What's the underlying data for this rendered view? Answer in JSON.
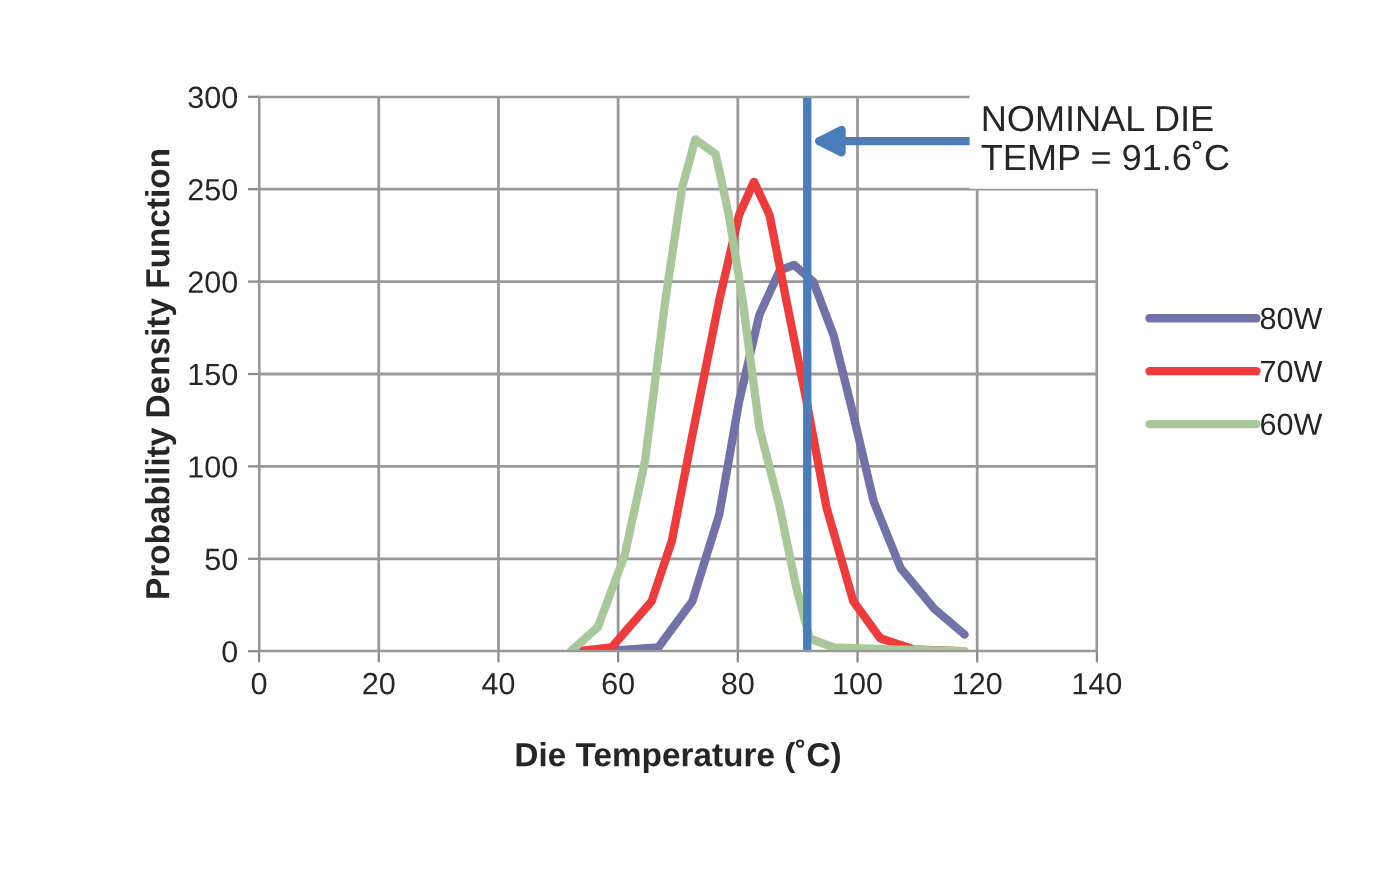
{
  "chart_data": {
    "type": "line",
    "xlabel": "Die Temperature (˚C)",
    "ylabel": "Probability Density Function",
    "xlim": [
      0,
      140
    ],
    "xticks": [
      0,
      20,
      40,
      60,
      80,
      100,
      120,
      140
    ],
    "ylim": [
      0,
      300
    ],
    "yticks": [
      0,
      50,
      100,
      150,
      200,
      250,
      300
    ],
    "grid": true,
    "legend": "right",
    "marker": "none",
    "line_style": "solid",
    "series": [
      {
        "name": "80W",
        "color": "#7072a8",
        "x": [
          57.8,
          66.7,
          72.4,
          76.9,
          80.2,
          83.6,
          87,
          89.4,
          92.6,
          96,
          99.3,
          102.7,
          107.2,
          112.8,
          117.9
        ],
        "values": [
          0,
          2,
          27,
          74,
          135,
          182,
          206,
          209,
          200,
          171,
          128,
          81,
          45,
          23,
          9
        ]
      },
      {
        "name": "70W",
        "color": "#ee3b3b",
        "x": [
          53.3,
          58.9,
          65.6,
          69,
          72.4,
          76.9,
          80.2,
          82.7,
          85.3,
          88.1,
          91.5,
          94.8,
          99.3,
          103.8,
          109.4,
          117.3
        ],
        "values": [
          0,
          2,
          27,
          60,
          117,
          190,
          236,
          254,
          236,
          190,
          135,
          78,
          27,
          7,
          1,
          0
        ]
      },
      {
        "name": "60W",
        "color": "#a8c89a",
        "x": [
          52.1,
          56.6,
          61.1,
          64.5,
          67.9,
          70.7,
          72.9,
          76.3,
          78.5,
          80.8,
          83.6,
          87,
          89.8,
          92,
          96,
          106,
          117.9
        ],
        "values": [
          0,
          13,
          52,
          103,
          190,
          251,
          277,
          269,
          236,
          190,
          121,
          78,
          34,
          7,
          2,
          1,
          0
        ]
      }
    ],
    "ref_lines": [
      {
        "axis": "x",
        "value": 91.6,
        "label": "NOMINAL DIE\nTEMP = 91.6˚C",
        "color": "#4a7ebb",
        "line_style": "solid"
      }
    ]
  }
}
